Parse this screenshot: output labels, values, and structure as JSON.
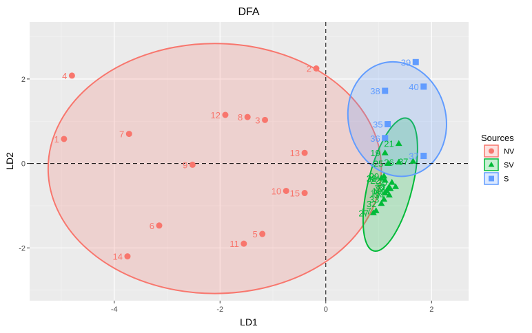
{
  "chart_data": {
    "type": "scatter",
    "title": "DFA",
    "xlabel": "LD1",
    "ylabel": "LD2",
    "xlim": [
      -5.6,
      2.7
    ],
    "ylim": [
      -3.25,
      3.35
    ],
    "xticks": [
      -4,
      -2,
      0,
      2
    ],
    "yticks": [
      -2,
      0,
      2
    ],
    "grid": true,
    "reference_lines": {
      "x": 0,
      "y": 0,
      "style": "dashed"
    },
    "legend": {
      "title": "Sources",
      "position": "right"
    },
    "series": [
      {
        "name": "NV",
        "color": "#F8766D",
        "marker": "circle",
        "ellipse": {
          "cx": -2.1,
          "cy": -0.12,
          "rx": 3.15,
          "ry": 2.96
        },
        "points": [
          {
            "label": "1",
            "x": -4.95,
            "y": 0.58
          },
          {
            "label": "2",
            "x": -0.18,
            "y": 2.25
          },
          {
            "label": "3",
            "x": -1.15,
            "y": 1.03
          },
          {
            "label": "4",
            "x": -4.8,
            "y": 2.08
          },
          {
            "label": "5",
            "x": -1.2,
            "y": -1.67
          },
          {
            "label": "6",
            "x": -3.15,
            "y": -1.47
          },
          {
            "label": "7",
            "x": -3.72,
            "y": 0.7
          },
          {
            "label": "8",
            "x": -1.48,
            "y": 1.1
          },
          {
            "label": "9",
            "x": -2.52,
            "y": -0.03
          },
          {
            "label": "10",
            "x": -0.75,
            "y": -0.65
          },
          {
            "label": "11",
            "x": -1.55,
            "y": -1.9
          },
          {
            "label": "12",
            "x": -1.9,
            "y": 1.15
          },
          {
            "label": "13",
            "x": -0.4,
            "y": 0.25
          },
          {
            "label": "14",
            "x": -3.75,
            "y": -2.2
          },
          {
            "label": "15",
            "x": -0.4,
            "y": -0.7
          }
        ]
      },
      {
        "name": "SV",
        "color": "#00BA38",
        "marker": "triangle",
        "ellipse": {
          "cx": 1.22,
          "cy": -0.5,
          "rx": 0.42,
          "ry": 1.62,
          "angle_deg": 14
        },
        "points": [
          {
            "label": "16",
            "x": 1.12,
            "y": -0.7
          },
          {
            "label": "17",
            "x": 0.95,
            "y": -1.12
          },
          {
            "label": "18",
            "x": 1.15,
            "y": -0.65
          },
          {
            "label": "19",
            "x": 1.12,
            "y": 0.25
          },
          {
            "label": "20",
            "x": 1.2,
            "y": -0.57
          },
          {
            "label": "21",
            "x": 1.38,
            "y": 0.47
          },
          {
            "label": "22",
            "x": 1.12,
            "y": -0.4
          },
          {
            "label": "23",
            "x": 1.22,
            "y": -0.6
          },
          {
            "label": "24",
            "x": 1.32,
            "y": -0.55
          },
          {
            "label": "25",
            "x": 1.18,
            "y": 0.0
          },
          {
            "label": "26",
            "x": 1.38,
            "y": 0.03
          },
          {
            "label": "27",
            "x": 0.9,
            "y": -1.17
          },
          {
            "label": "28",
            "x": 1.05,
            "y": -0.35
          },
          {
            "label": "29",
            "x": 1.1,
            "y": -0.3
          },
          {
            "label": "30",
            "x": 1.25,
            "y": -0.45
          },
          {
            "label": "31",
            "x": 1.05,
            "y": -0.35
          },
          {
            "label": "32",
            "x": 1.05,
            "y": -0.95
          },
          {
            "label": "33",
            "x": 1.1,
            "y": -0.85
          },
          {
            "label": "34",
            "x": 1.2,
            "y": -0.75
          },
          {
            "label": "37",
            "x": 1.65,
            "y": 0.05
          }
        ]
      },
      {
        "name": "S",
        "color": "#619CFF",
        "marker": "square",
        "ellipse": {
          "cx": 1.35,
          "cy": 1.05,
          "rx": 0.92,
          "ry": 1.37,
          "angle_deg": -15
        },
        "points": [
          {
            "label": "35",
            "x": 1.17,
            "y": 0.93
          },
          {
            "label": "36",
            "x": 1.12,
            "y": 0.6
          },
          {
            "label": "37",
            "x": 1.85,
            "y": 0.18
          },
          {
            "label": "38",
            "x": 1.12,
            "y": 1.72
          },
          {
            "label": "39",
            "x": 1.7,
            "y": 2.4
          },
          {
            "label": "40",
            "x": 1.85,
            "y": 1.82
          }
        ]
      }
    ]
  }
}
